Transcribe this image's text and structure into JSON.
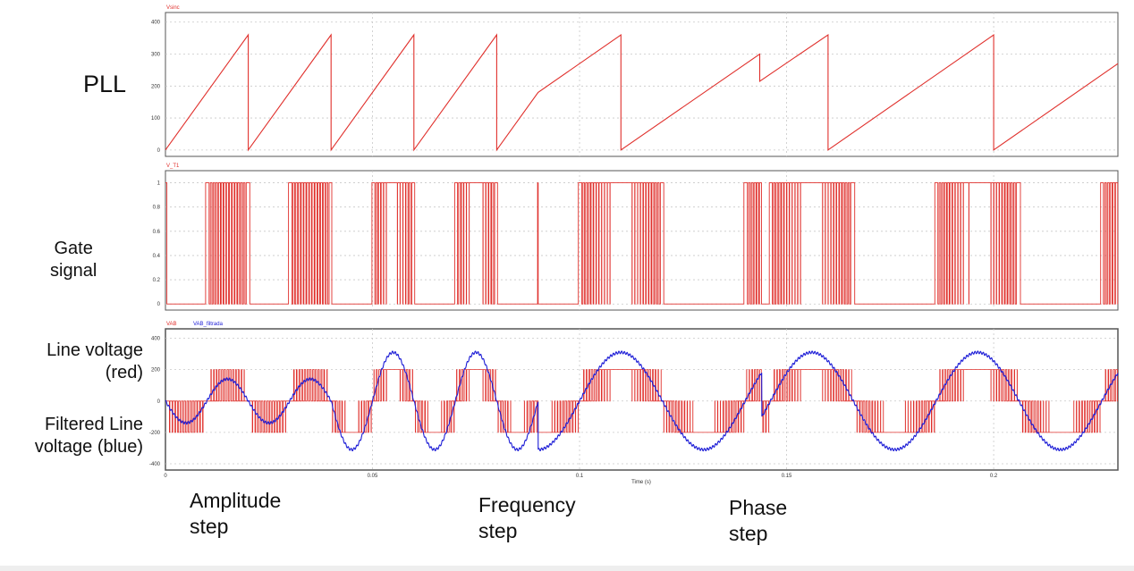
{
  "labels": {
    "pll": "PLL",
    "gate_line1": "Gate",
    "gate_line2": "signal",
    "line_voltage_line1": "Line voltage",
    "line_voltage_line2": "(red)",
    "filtered_line1": "Filtered Line",
    "filtered_line2": "voltage  (blue)",
    "amplitude_line1": "Amplitude",
    "amplitude_line2": "step",
    "frequency_line1": "Frequency",
    "frequency_line2": "step",
    "phase_line1": "Phase",
    "phase_line2": "step"
  },
  "colors": {
    "red": "#e0302c",
    "blue": "#1c1cd6",
    "grid": "#c8c8c8",
    "frame": "#555555"
  },
  "chart_data": [
    {
      "type": "line",
      "panel": "pll",
      "legend": [
        "Vsinc"
      ],
      "xlim": [
        0,
        0.23
      ],
      "ylim": [
        -20,
        430
      ],
      "yticks": [
        0,
        100,
        200,
        300,
        400
      ],
      "ytick_labels": [
        "0",
        "100",
        "200",
        "300",
        "400"
      ],
      "series": [
        {
          "name": "Vsinc",
          "color": "#e0302c",
          "x": [
            0,
            0.02,
            0.02,
            0.04,
            0.04,
            0.06,
            0.06,
            0.08,
            0.08,
            0.09,
            0.11,
            0.11,
            0.1435,
            0.1435,
            0.16,
            0.16,
            0.2,
            0.2,
            0.23
          ],
          "y": [
            0,
            360,
            0,
            360,
            0,
            360,
            0,
            360,
            0,
            180,
            360,
            0,
            300,
            215,
            360,
            0,
            360,
            0,
            270
          ]
        }
      ]
    },
    {
      "type": "line",
      "panel": "gate",
      "legend": [
        "V_T1"
      ],
      "xlim": [
        0,
        0.23
      ],
      "ylim": [
        -0.05,
        1.1
      ],
      "yticks": [
        0,
        0.2,
        0.4,
        0.6,
        0.8,
        1
      ],
      "ytick_labels": [
        "0",
        "0.2",
        "0.4",
        "0.6",
        "0.8",
        "1"
      ],
      "pwm_carrier_hz": 1500,
      "pwm_phases": [
        {
          "from": 0,
          "to": 0.04,
          "fundamental_hz": 50,
          "amplitude": 0.5,
          "phase_deg": 180
        },
        {
          "from": 0.04,
          "to": 0.09,
          "fundamental_hz": 50,
          "amplitude": 1.0,
          "phase_deg": 180
        },
        {
          "from": 0.09,
          "to": 0.144,
          "fundamental_hz": 25,
          "amplitude": 1.0,
          "phase_deg": 180
        },
        {
          "from": 0.144,
          "to": 0.23,
          "fundamental_hz": 25,
          "amplitude": 1.0,
          "phase_deg": 125
        }
      ],
      "series": [
        {
          "name": "V_T1",
          "color": "#e0302c",
          "values": [
            0,
            1
          ]
        }
      ]
    },
    {
      "type": "line",
      "panel": "voltage",
      "legend": [
        "VAB",
        "VAB_filtrada"
      ],
      "xlabel": "Time (s)",
      "xlim": [
        0,
        0.23
      ],
      "ylim": [
        -440,
        460
      ],
      "yticks": [
        -400,
        -200,
        0,
        200,
        400
      ],
      "ytick_labels": [
        "-400",
        "-200",
        "0",
        "200",
        "400"
      ],
      "xticks": [
        0,
        0.05,
        0.1,
        0.15,
        0.2
      ],
      "xtick_labels": [
        "0",
        "0.05",
        "0.1",
        "0.15",
        "0.2"
      ],
      "series": [
        {
          "name": "VAB",
          "color": "#e0302c",
          "levels": [
            -200,
            0,
            200
          ]
        },
        {
          "name": "VAB_filtrada",
          "color": "#1c1cd6",
          "amplitudes": [
            140,
            310
          ]
        }
      ]
    }
  ]
}
